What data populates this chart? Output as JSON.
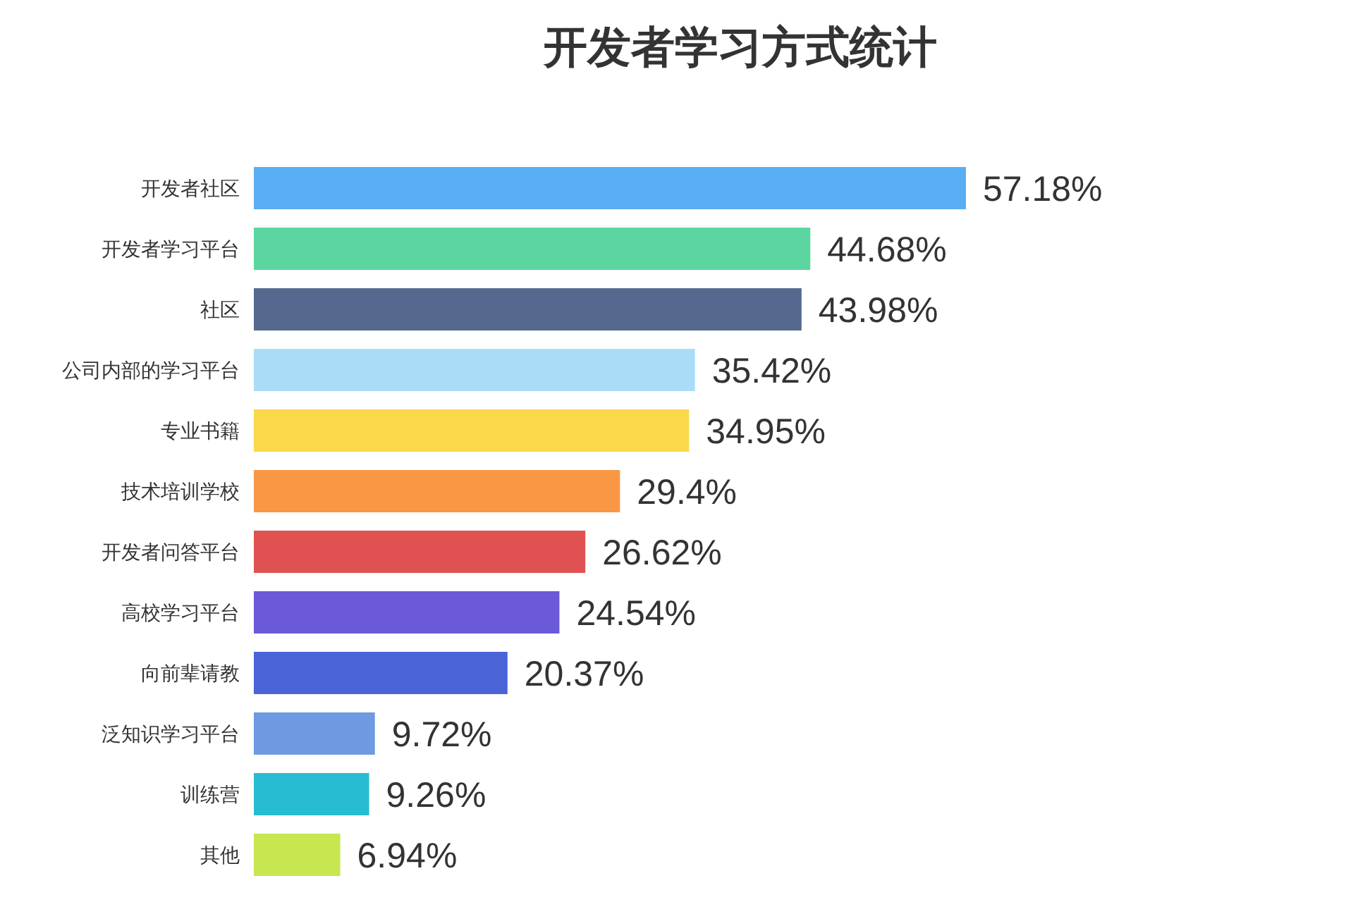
{
  "chart_data": {
    "type": "bar",
    "orientation": "horizontal",
    "title": "开发者学习方式统计",
    "categories": [
      "开发者社区",
      "开发者学习平台",
      "社区",
      "公司内部的学习平台",
      "专业书籍",
      "技术培训学校",
      "开发者问答平台",
      "高校学习平台",
      "向前辈请教",
      "泛知识学习平台",
      "训练营",
      "其他"
    ],
    "values": [
      57.18,
      44.68,
      43.98,
      35.42,
      34.95,
      29.4,
      26.62,
      24.54,
      20.37,
      9.72,
      9.26,
      6.94
    ],
    "value_labels": [
      "57.18%",
      "44.68%",
      "43.98%",
      "35.42%",
      "34.95%",
      "29.4%",
      "26.62%",
      "24.54%",
      "20.37%",
      "9.72%",
      "9.26%",
      "6.94%"
    ],
    "colors": [
      "#5aaef3",
      "#5bd6a0",
      "#55698f",
      "#a9dcf7",
      "#fbd84a",
      "#f99745",
      "#e05252",
      "#6b5ad8",
      "#4a64d8",
      "#6d9ae0",
      "#27bcd2",
      "#c8e650"
    ]
  }
}
